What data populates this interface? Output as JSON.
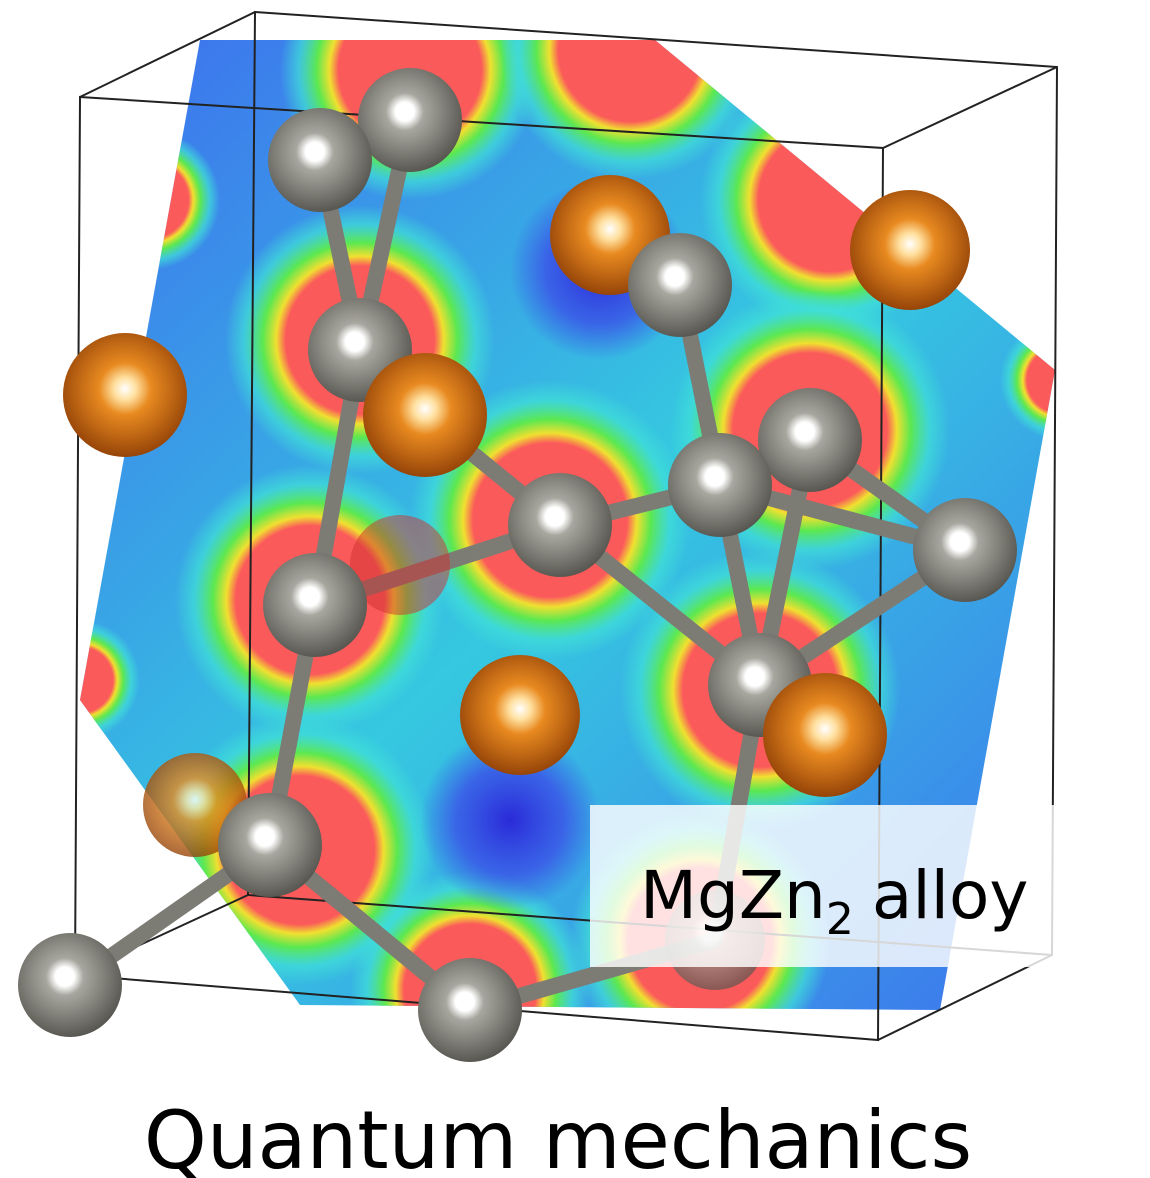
{
  "label": {
    "main": "MgZn",
    "sub": "2",
    "rest": "alloy"
  },
  "caption": "Quantum mechanics"
}
